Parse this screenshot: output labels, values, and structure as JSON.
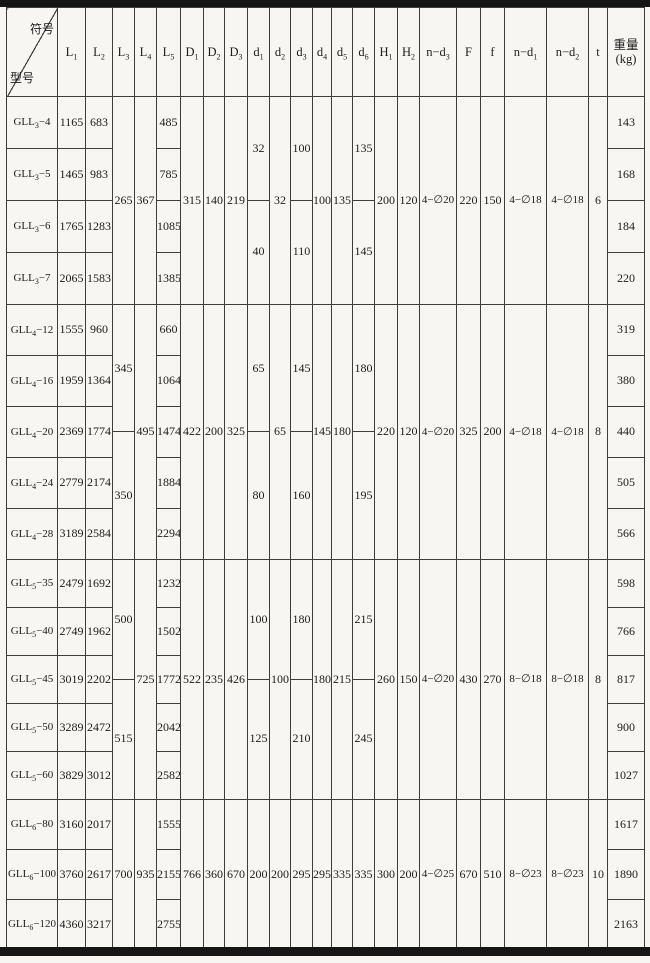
{
  "header": {
    "corner": {
      "top_label": "符号",
      "bottom_label": "型号"
    },
    "columns": [
      {
        "key": "L1",
        "label": "L~1~"
      },
      {
        "key": "L2",
        "label": "L~2~"
      },
      {
        "key": "L3",
        "label": "L~3~"
      },
      {
        "key": "L4",
        "label": "L~4~"
      },
      {
        "key": "L5",
        "label": "L~5~"
      },
      {
        "key": "D1",
        "label": "D~1~"
      },
      {
        "key": "D2",
        "label": "D~2~"
      },
      {
        "key": "D3",
        "label": "D~3~"
      },
      {
        "key": "d1",
        "label": "d~1~"
      },
      {
        "key": "d2",
        "label": "d~2~"
      },
      {
        "key": "d3",
        "label": "d~3~"
      },
      {
        "key": "d4",
        "label": "d~4~"
      },
      {
        "key": "d5",
        "label": "d~5~"
      },
      {
        "key": "d6",
        "label": "d~6~"
      },
      {
        "key": "H1",
        "label": "H~1~"
      },
      {
        "key": "H2",
        "label": "H~2~"
      },
      {
        "key": "nd3",
        "label": "n−d~3~"
      },
      {
        "key": "F",
        "label": "F"
      },
      {
        "key": "f",
        "label": "f"
      },
      {
        "key": "nd1",
        "label": "n−d~1~"
      },
      {
        "key": "nd2",
        "label": "n−d~2~"
      },
      {
        "key": "t",
        "label": "t"
      },
      {
        "key": "weight",
        "label": "重量",
        "label2": "(kg)"
      }
    ]
  },
  "blocks": [
    {
      "rows": [
        {
          "model": "GLL~3~−4",
          "L1": "1165",
          "L2": "683",
          "L5": "485",
          "weight": "143"
        },
        {
          "model": "GLL~3~−5",
          "L1": "1465",
          "L2": "983",
          "L5": "785",
          "weight": "168"
        },
        {
          "model": "GLL~3~−6",
          "L1": "1765",
          "L2": "1283",
          "L5": "1085",
          "weight": "184"
        },
        {
          "model": "GLL~3~−7",
          "L1": "2065",
          "L2": "1583",
          "L5": "1385",
          "weight": "220"
        }
      ],
      "shared": {
        "L3": "265",
        "L4": "367",
        "D1": "315",
        "D2": "140",
        "D3": "219",
        "d1": {
          "split": [
            "32",
            "40"
          ]
        },
        "d2": "32",
        "d3": {
          "split": [
            "100",
            "110"
          ]
        },
        "d4": "100",
        "d5": "135",
        "d6": {
          "split": [
            "135",
            "145"
          ]
        },
        "H1": "200",
        "H2": "120",
        "nd3": "4−∅20",
        "F": "220",
        "f": "150",
        "nd1": "4−∅18",
        "nd2": "4−∅18",
        "t": "6"
      }
    },
    {
      "rows": [
        {
          "model": "GLL~4~−12",
          "L1": "1555",
          "L2": "960",
          "L5": "660",
          "weight": "319"
        },
        {
          "model": "GLL~4~−16",
          "L1": "1959",
          "L2": "1364",
          "L5": "1064",
          "weight": "380"
        },
        {
          "model": "GLL~4~−20",
          "L1": "2369",
          "L2": "1774",
          "L5": "1474",
          "weight": "440"
        },
        {
          "model": "GLL~4~−24",
          "L1": "2779",
          "L2": "2174",
          "L5": "1884",
          "weight": "505"
        },
        {
          "model": "GLL~4~−28",
          "L1": "3189",
          "L2": "2584",
          "L5": "2294",
          "weight": "566"
        }
      ],
      "shared": {
        "L3": {
          "split": [
            "345",
            "350"
          ]
        },
        "L4": "495",
        "D1": "422",
        "D2": "200",
        "D3": "325",
        "d1": {
          "split": [
            "65",
            "80"
          ]
        },
        "d2": "65",
        "d3": {
          "split": [
            "145",
            "160"
          ]
        },
        "d4": "145",
        "d5": "180",
        "d6": {
          "split": [
            "180",
            "195"
          ]
        },
        "H1": "220",
        "H2": "120",
        "nd3": "4−∅20",
        "F": "325",
        "f": "200",
        "nd1": "4−∅18",
        "nd2": "4−∅18",
        "t": "8"
      }
    },
    {
      "rows": [
        {
          "model": "GLL~5~−35",
          "L1": "2479",
          "L2": "1692",
          "L5": "1232",
          "weight": "598"
        },
        {
          "model": "GLL~5~−40",
          "L1": "2749",
          "L2": "1962",
          "L5": "1502",
          "weight": "766"
        },
        {
          "model": "GLL~5~−45",
          "L1": "3019",
          "L2": "2202",
          "L5": "1772",
          "weight": "817"
        },
        {
          "model": "GLL~5~−50",
          "L1": "3289",
          "L2": "2472",
          "L5": "2042",
          "weight": "900"
        },
        {
          "model": "GLL~5~−60",
          "L1": "3829",
          "L2": "3012",
          "L5": "2582",
          "weight": "1027"
        }
      ],
      "shared": {
        "L3": {
          "split": [
            "500",
            "515"
          ]
        },
        "L4": "725",
        "D1": "522",
        "D2": "235",
        "D3": "426",
        "d1": {
          "split": [
            "100",
            "125"
          ]
        },
        "d2": "100",
        "d3": {
          "split": [
            "180",
            "210"
          ]
        },
        "d4": "180",
        "d5": "215",
        "d6": {
          "split": [
            "215",
            "245"
          ]
        },
        "H1": "260",
        "H2": "150",
        "nd3": "4−∅20",
        "F": "430",
        "f": "270",
        "nd1": "8−∅18",
        "nd2": "8−∅18",
        "t": "8"
      }
    },
    {
      "rows": [
        {
          "model": "GLL~6~−80",
          "L1": "3160",
          "L2": "2017",
          "L5": "1555",
          "weight": "1617"
        },
        {
          "model": "GLL~6~−100",
          "L1": "3760",
          "L2": "2617",
          "L5": "2155",
          "weight": "1890"
        },
        {
          "model": "GLL~6~−120",
          "L1": "4360",
          "L2": "3217",
          "L5": "2755",
          "weight": "2163"
        }
      ],
      "shared": {
        "L3": "700",
        "L4": "935",
        "D1": "766",
        "D2": "360",
        "D3": "670",
        "d1": "200",
        "d2": "200",
        "d3": "295",
        "d4": "295",
        "d5": "335",
        "d6": "335",
        "H1": "300",
        "H2": "200",
        "nd3": "4−∅25",
        "F": "670",
        "f": "510",
        "nd1": "8−∅23",
        "nd2": "8−∅23",
        "t": "10"
      }
    }
  ]
}
